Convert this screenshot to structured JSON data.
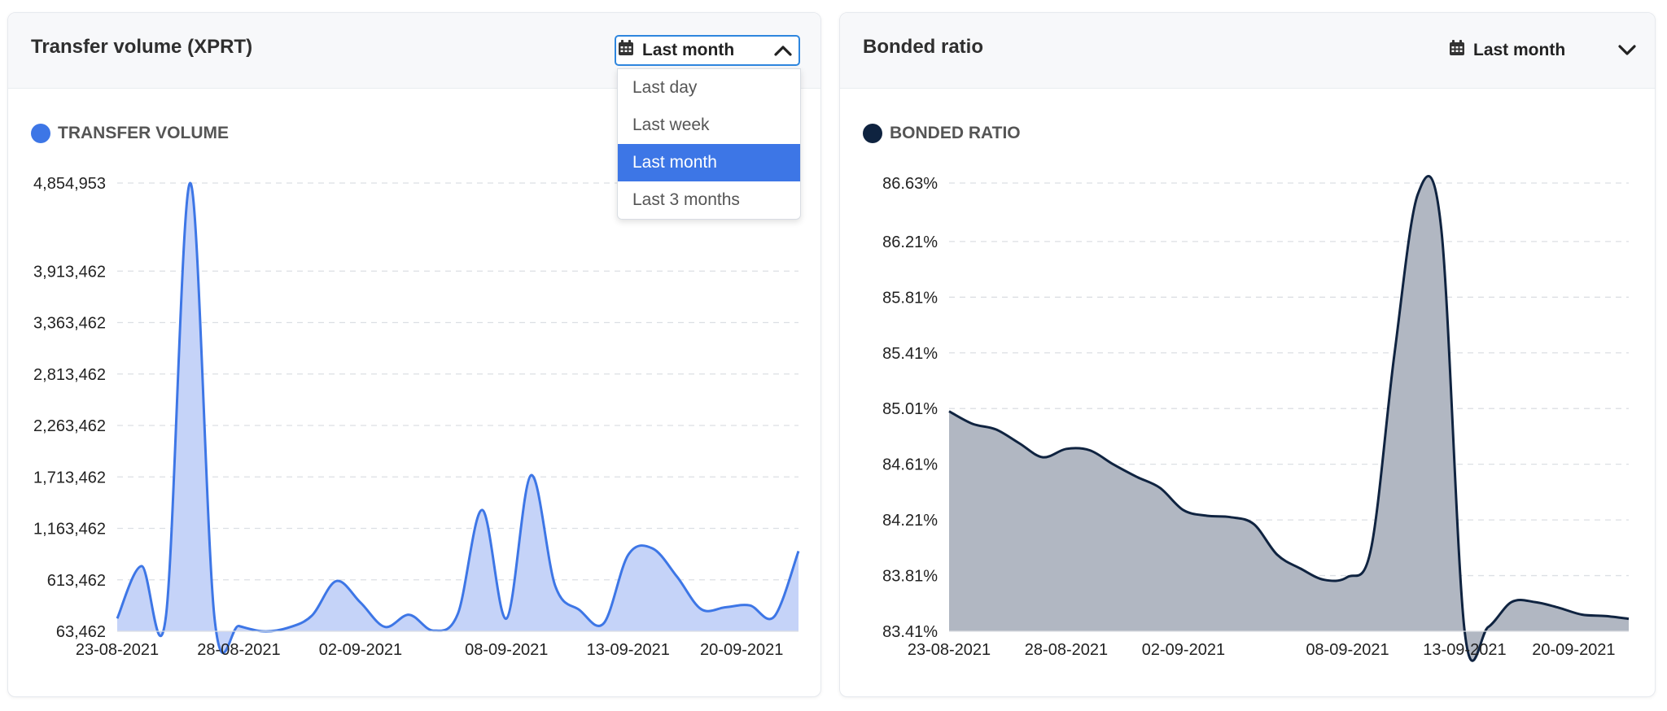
{
  "left_card": {
    "title": "Transfer volume (XPRT)",
    "range_label": "Last month",
    "range_icon": "calendar-icon",
    "dropdown_open": true,
    "dropdown_options": [
      "Last day",
      "Last week",
      "Last month",
      "Last 3 months"
    ],
    "selected_option": "Last month",
    "legend_label": "TRANSFER VOLUME",
    "legend_color": "#3d76e6"
  },
  "right_card": {
    "title": "Bonded ratio",
    "range_label": "Last month",
    "range_icon": "calendar-icon",
    "legend_label": "BONDED RATIO",
    "legend_color": "#0f2340"
  },
  "chart_data": [
    {
      "type": "area",
      "series": [
        {
          "name": "TRANSFER VOLUME",
          "color": "#3d76e6",
          "fill": "#c5d3f8"
        }
      ],
      "x_tick_labels": [
        "23-08-2021",
        "28-08-2021",
        "02-09-2021",
        "08-09-2021",
        "13-09-2021",
        "20-09-2021"
      ],
      "y_tick_labels": [
        "63,462",
        "613,462",
        "1,163,462",
        "1,713,462",
        "2,263,462",
        "2,813,462",
        "3,363,462",
        "3,913,462",
        "4,854,953"
      ],
      "y_tick_values": [
        63462,
        613462,
        1163462,
        1713462,
        2263462,
        2813462,
        3363462,
        3913462,
        4854953
      ],
      "ylim": [
        63462,
        4854953
      ],
      "xlim": [
        0,
        28
      ],
      "x_tick_positions": [
        0,
        5,
        10,
        16,
        21,
        26
      ],
      "grid": true,
      "points": [
        [
          0,
          200000
        ],
        [
          1,
          760000
        ],
        [
          2,
          220000
        ],
        [
          3,
          4854953
        ],
        [
          4,
          200000
        ],
        [
          5,
          120000
        ],
        [
          6,
          63462
        ],
        [
          7,
          100000
        ],
        [
          8,
          230000
        ],
        [
          9,
          600000
        ],
        [
          10,
          370000
        ],
        [
          11,
          110000
        ],
        [
          12,
          240000
        ],
        [
          13,
          70000
        ],
        [
          14,
          250000
        ],
        [
          15,
          1360000
        ],
        [
          16,
          200000
        ],
        [
          17,
          1730000
        ],
        [
          18,
          550000
        ],
        [
          19,
          290000
        ],
        [
          20,
          150000
        ],
        [
          21,
          880000
        ],
        [
          22,
          950000
        ],
        [
          23,
          650000
        ],
        [
          24,
          300000
        ],
        [
          25,
          320000
        ],
        [
          26,
          340000
        ],
        [
          27,
          220000
        ],
        [
          28,
          920000
        ]
      ]
    },
    {
      "type": "area",
      "series": [
        {
          "name": "BONDED RATIO",
          "color": "#0f2340",
          "fill": "#b1b7c2"
        }
      ],
      "x_tick_labels": [
        "23-08-2021",
        "28-08-2021",
        "02-09-2021",
        "08-09-2021",
        "13-09-2021",
        "20-09-2021"
      ],
      "y_tick_labels": [
        "83.41%",
        "83.81%",
        "84.21%",
        "84.61%",
        "85.01%",
        "85.41%",
        "85.81%",
        "86.21%",
        "86.63%"
      ],
      "y_tick_values": [
        83.41,
        83.81,
        84.21,
        84.61,
        85.01,
        85.41,
        85.81,
        86.21,
        86.63
      ],
      "ylim": [
        83.41,
        86.63
      ],
      "xlim": [
        0,
        29
      ],
      "x_tick_positions": [
        0,
        5,
        10,
        17,
        22,
        27
      ],
      "grid": true,
      "points": [
        [
          0,
          84.99
        ],
        [
          1,
          84.9
        ],
        [
          2,
          84.86
        ],
        [
          3,
          84.76
        ],
        [
          4,
          84.66
        ],
        [
          5,
          84.72
        ],
        [
          6,
          84.71
        ],
        [
          7,
          84.61
        ],
        [
          8,
          84.52
        ],
        [
          9,
          84.44
        ],
        [
          10,
          84.28
        ],
        [
          11,
          84.24
        ],
        [
          12,
          84.23
        ],
        [
          13,
          84.18
        ],
        [
          14,
          83.96
        ],
        [
          15,
          83.86
        ],
        [
          16,
          83.78
        ],
        [
          17,
          83.8
        ],
        [
          18,
          84.0
        ],
        [
          19,
          85.4
        ],
        [
          20,
          86.55
        ],
        [
          21,
          86.3
        ],
        [
          22,
          83.41
        ],
        [
          23,
          83.44
        ],
        [
          24,
          83.62
        ],
        [
          25,
          83.62
        ],
        [
          26,
          83.58
        ],
        [
          27,
          83.53
        ],
        [
          28,
          83.52
        ],
        [
          29,
          83.5
        ]
      ]
    }
  ]
}
